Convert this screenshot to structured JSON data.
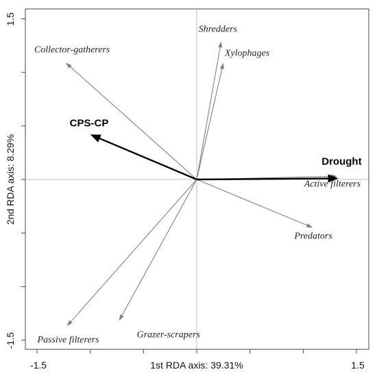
{
  "chart_data": {
    "type": "biplot",
    "xlabel": "1st RDA axis: 39.31%",
    "ylabel": "2nd RDA axis: 8.29%",
    "xlim": [
      -1.5,
      1.5
    ],
    "ylim": [
      -1.5,
      1.5
    ],
    "x_tick_labels": [
      "-1.5",
      "1.5"
    ],
    "y_tick_labels": [
      "-1.5",
      "1.5"
    ],
    "grid": false,
    "zero_lines": true,
    "environmental_vectors": [
      {
        "name": "Drought",
        "x": 1.33,
        "y": 0.01,
        "color": "#000000"
      },
      {
        "name": "CPS-CP",
        "x": -1.0,
        "y": 0.42,
        "color": "#000000"
      }
    ],
    "taxa_vectors": [
      {
        "name": "Shredders",
        "x": 0.23,
        "y": 1.29,
        "color": "#808080"
      },
      {
        "name": "Xylophages",
        "x": 0.25,
        "y": 1.09,
        "color": "#808080"
      },
      {
        "name": "Collector-gatherers",
        "x": -1.23,
        "y": 1.09,
        "color": "#808080"
      },
      {
        "name": "Active filterers",
        "x": 1.32,
        "y": 0.03,
        "color": "#808080"
      },
      {
        "name": "Predators",
        "x": 1.09,
        "y": -0.45,
        "color": "#808080"
      },
      {
        "name": "Grazer-scrapers",
        "x": -0.73,
        "y": -1.32,
        "color": "#808080"
      },
      {
        "name": "Passive filterers",
        "x": -1.22,
        "y": -1.37,
        "color": "#808080"
      }
    ]
  }
}
